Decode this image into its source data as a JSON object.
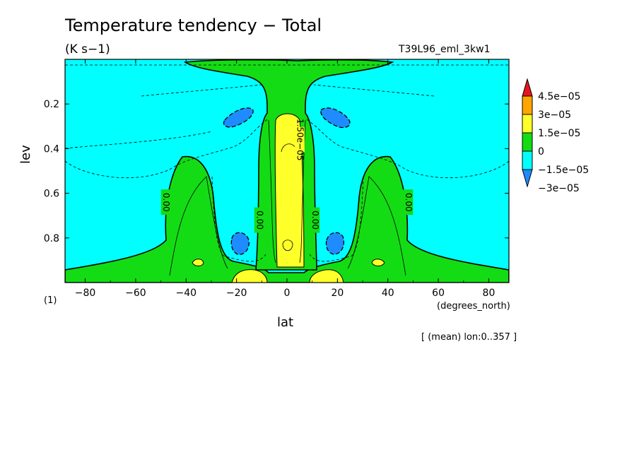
{
  "chart_data": {
    "type": "contour",
    "title": "Temperature tendency − Total",
    "units": "(K s−1)",
    "run_id": "T39L96_eml_3kw1",
    "xlabel": "lat",
    "xunits": "(degrees_north)",
    "ylabel": "lev",
    "yunits": "(1)",
    "note": "[ (mean) lon:0..357 ]",
    "xlim": [
      -88,
      88
    ],
    "ylim": [
      0.0,
      1.0
    ],
    "y_inverted": true,
    "x_ticks": [
      -80,
      -60,
      -40,
      -20,
      0,
      20,
      40,
      60,
      80
    ],
    "y_ticks": [
      0.2,
      0.4,
      0.6,
      0.8
    ],
    "contour_labels": [
      {
        "lat": -48,
        "lev": 0.64,
        "text": "0.00"
      },
      {
        "lat": -11,
        "lev": 0.72,
        "text": "0.00"
      },
      {
        "lat": 11,
        "lev": 0.72,
        "text": "0.00"
      },
      {
        "lat": 48,
        "lev": 0.64,
        "text": "0.00"
      },
      {
        "lat": 5,
        "lev": 0.36,
        "text": "1.50e−05"
      }
    ],
    "colorbar": {
      "levels": [
        "4.5e−05",
        "3e−05",
        "1.5e−05",
        "0",
        "−1.5e−05",
        "−3e−05"
      ],
      "colors": [
        "#e8141c",
        "#ffa500",
        "#ffff2a",
        "#14dc14",
        "#00ffff",
        "#1e8cff"
      ]
    }
  }
}
